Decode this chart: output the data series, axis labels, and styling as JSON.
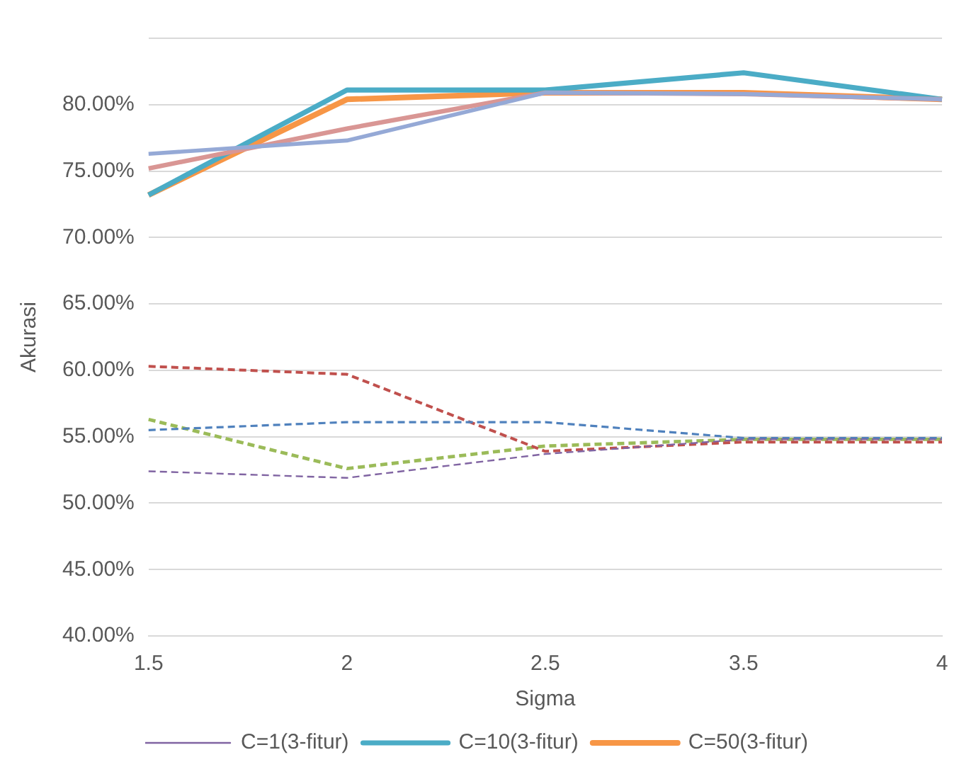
{
  "chart_data": {
    "type": "line",
    "xlabel": "Sigma",
    "ylabel": "Akurasi",
    "categories": [
      "1.5",
      "2",
      "2.5",
      "3.5",
      "4"
    ],
    "ylim": [
      40,
      85
    ],
    "yticks": [
      {
        "value": 40,
        "label": "40.00%"
      },
      {
        "value": 45,
        "label": "45.00%"
      },
      {
        "value": 50,
        "label": "50.00%"
      },
      {
        "value": 55,
        "label": "55.00%"
      },
      {
        "value": 60,
        "label": "60.00%"
      },
      {
        "value": 65,
        "label": "65.00%"
      },
      {
        "value": 70,
        "label": "70.00%"
      },
      {
        "value": 75,
        "label": "75.00%"
      },
      {
        "value": 80,
        "label": "80.00%"
      },
      {
        "value": 85,
        "label": null
      }
    ],
    "grid": "y",
    "legend": "bottom",
    "marker": "none",
    "series": [
      {
        "name": "C=1(3-fitur)",
        "color": "#8064a2",
        "line_style": "dashed",
        "values": [
          52.4,
          51.9,
          53.7,
          54.8,
          54.8
        ]
      },
      {
        "color": "#4f81bd",
        "line_style": "dashed",
        "values": [
          55.5,
          56.1,
          56.1,
          54.9,
          54.9
        ]
      },
      {
        "color": "#c0504d",
        "line_style": "dashed",
        "values": [
          60.3,
          59.7,
          53.9,
          54.6,
          54.6
        ]
      },
      {
        "color": "#9bbb59",
        "line_style": "dashed",
        "values": [
          56.3,
          52.6,
          54.3,
          54.8,
          54.8
        ]
      },
      {
        "color": "#95a9d6",
        "line_style": "solid",
        "values": [
          76.3,
          77.3,
          80.9,
          80.8,
          80.4
        ]
      },
      {
        "color": "#d99694",
        "line_style": "solid",
        "values": [
          75.2,
          78.2,
          80.9,
          80.8,
          80.4
        ]
      },
      {
        "name": "C=10(3-fitur)",
        "color": "#4bacc6",
        "line_style": "solid",
        "values": [
          73.2,
          81.1,
          81.1,
          82.4,
          80.4
        ]
      },
      {
        "name": "C=50(3-fitur)",
        "color": "#f79646",
        "line_style": "solid",
        "values": [
          73.2,
          80.4,
          80.9,
          80.9,
          80.4
        ]
      }
    ]
  }
}
